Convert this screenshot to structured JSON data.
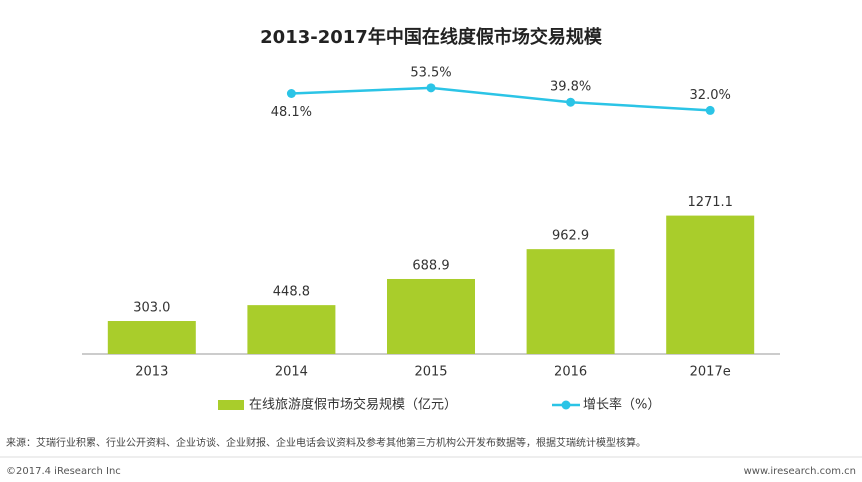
{
  "chart_data": {
    "type": "bar",
    "title": "2013-2017年中国在线度假市场交易规模",
    "categories": [
      "2013",
      "2014",
      "2015",
      "2016",
      "2017e"
    ],
    "ylim": [
      0,
      2700
    ],
    "y2lim": [
      -200,
      80
    ],
    "series": [
      {
        "name": "在线旅游度假市场交易规模（亿元）",
        "type": "bar",
        "color": "#a9cd2b",
        "values": [
          303.0,
          448.8,
          688.9,
          962.9,
          1271.1
        ],
        "value_labels": [
          "303.0",
          "448.8",
          "688.9",
          "962.9",
          "1271.1"
        ]
      },
      {
        "name": "增长率（%）",
        "type": "line",
        "axis": "y2",
        "color": "#2bc4e6",
        "values": [
          null,
          48.1,
          53.5,
          39.8,
          32.0
        ],
        "value_labels": [
          null,
          "48.1%",
          "53.5%",
          "39.8%",
          "32.0%"
        ]
      }
    ]
  },
  "source": "来源：艾瑞行业积累、行业公开资料、企业访谈、企业财报、企业电话会议资料及参考其他第三方机构公开发布数据等，根据艾瑞统计模型核算。",
  "copyright": "©2017.4 iResearch Inc",
  "website": "www.iresearch.com.cn"
}
